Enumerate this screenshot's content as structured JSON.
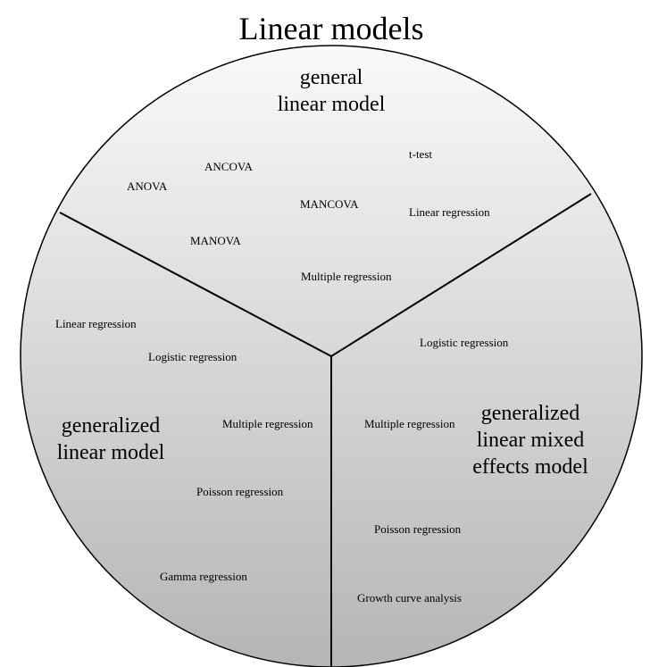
{
  "title": "Linear models",
  "colors": {
    "gradient_top": "#fafafa",
    "gradient_bottom": "#b5b5b5",
    "stroke": "#000000",
    "text": "#000000"
  },
  "sectors": {
    "top": {
      "title_lines": [
        "general",
        "linear model"
      ],
      "items": [
        "t-test",
        "ANCOVA",
        "ANOVA",
        "MANCOVA",
        "Linear regression",
        "MANOVA",
        "Multiple regression"
      ]
    },
    "left": {
      "title_lines": [
        "generalized",
        "linear model"
      ],
      "items": [
        "Linear regression",
        "Logistic regression",
        "Multiple regression",
        "Poisson regression",
        "Gamma regression"
      ]
    },
    "right": {
      "title_lines": [
        "generalized",
        "linear mixed",
        "effects model"
      ],
      "items": [
        "Logistic regression",
        "Multiple regression",
        "Poisson regression",
        "Growth curve analysis"
      ]
    }
  }
}
